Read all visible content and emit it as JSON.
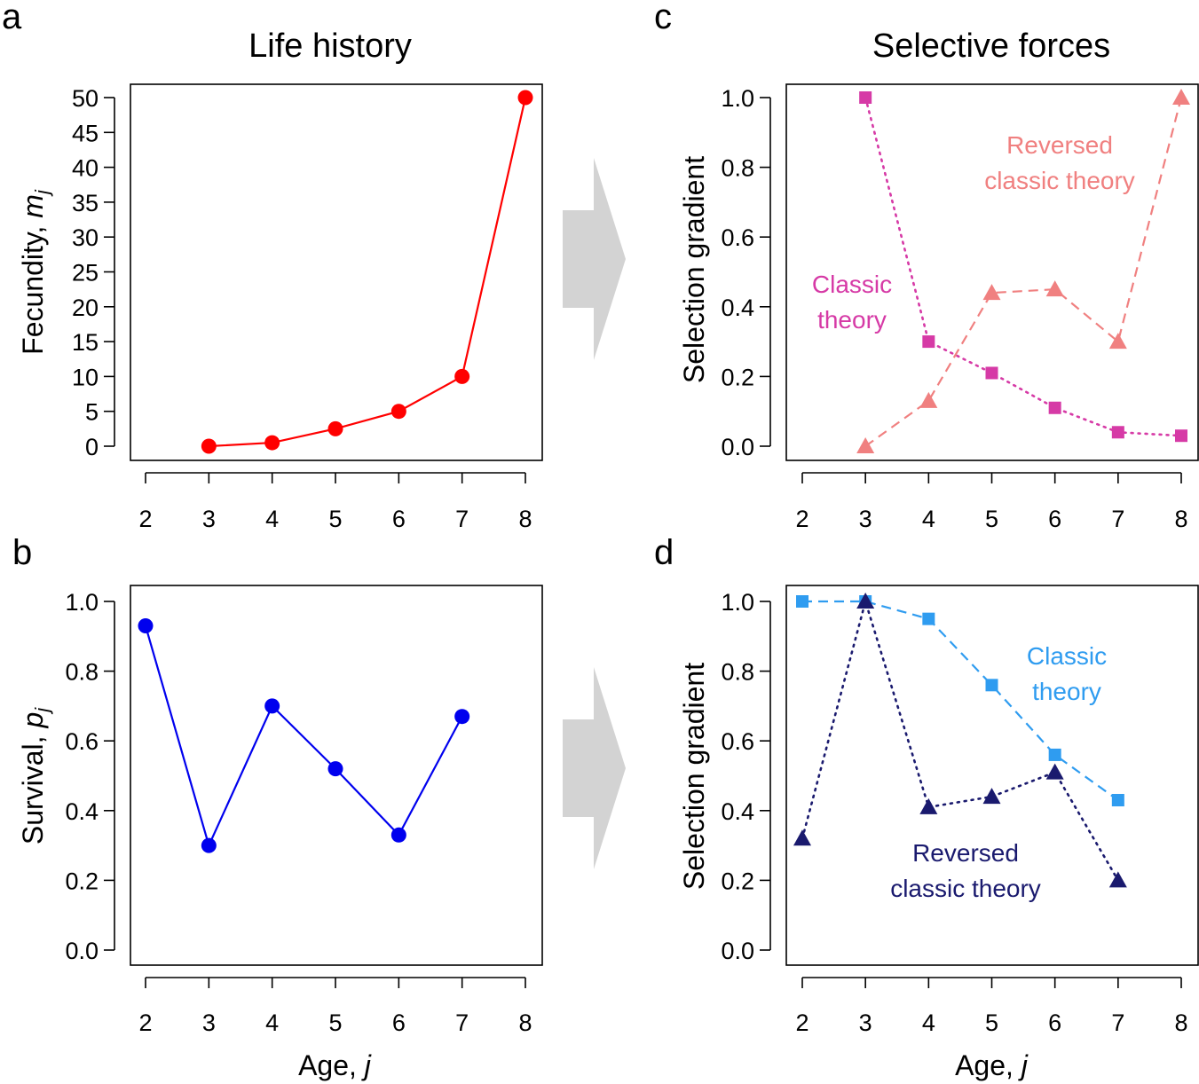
{
  "figure": {
    "col_titles": {
      "left": "Life history",
      "right": "Selective forces"
    },
    "panel_letters": {
      "a": "a",
      "b": "b",
      "c": "c",
      "d": "d"
    },
    "arrow_color": "#d3d3d3",
    "colors": {
      "fecundity": "#ff0000",
      "survival": "#0000ee",
      "c_classic": "#d63aa6",
      "c_reversed": "#f08080",
      "d_classic": "#2f9cf0",
      "d_reversed": "#1a1a6e"
    }
  },
  "chart_data": [
    {
      "panel": "a",
      "type": "line",
      "x": [
        3,
        4,
        5,
        6,
        7,
        8
      ],
      "series": [
        {
          "values": [
            0,
            0.5,
            2.5,
            5,
            10,
            50
          ],
          "color": "#ff0000",
          "marker": "circle",
          "line": "solid"
        }
      ],
      "xlabel": "",
      "ylabel": "Fecundity, ",
      "ylabel_sym": "m",
      "ylabel_sub": "j",
      "xlim": [
        2,
        8
      ],
      "ylim": [
        0,
        50
      ],
      "xticks": [
        2,
        3,
        4,
        5,
        6,
        7,
        8
      ],
      "yticks": [
        0,
        5,
        10,
        15,
        20,
        25,
        30,
        35,
        40,
        45,
        50
      ],
      "ytick_labels": [
        "0",
        "5",
        "10",
        "15",
        "20",
        "25",
        "30",
        "35",
        "40",
        "45",
        "50"
      ],
      "grid": false
    },
    {
      "panel": "b",
      "type": "line",
      "x": [
        2,
        3,
        4,
        5,
        6,
        7
      ],
      "series": [
        {
          "values": [
            0.93,
            0.3,
            0.7,
            0.52,
            0.33,
            0.67
          ],
          "color": "#0000ee",
          "marker": "circle",
          "line": "solid"
        }
      ],
      "xlabel": "Age, ",
      "xlabel_sym": "j",
      "ylabel": "Survival, ",
      "ylabel_sym": "p",
      "ylabel_sub": "j",
      "xlim": [
        2,
        8
      ],
      "ylim": [
        0,
        1
      ],
      "xticks": [
        2,
        3,
        4,
        5,
        6,
        7,
        8
      ],
      "yticks": [
        0,
        0.2,
        0.4,
        0.6,
        0.8,
        1.0
      ],
      "ytick_labels": [
        "0.0",
        "0.2",
        "0.4",
        "0.6",
        "0.8",
        "1.0"
      ],
      "grid": false
    },
    {
      "panel": "c",
      "type": "line",
      "x": [
        3,
        4,
        5,
        6,
        7,
        8
      ],
      "series": [
        {
          "name": "Classic theory",
          "values": [
            1.0,
            0.3,
            0.21,
            0.11,
            0.04,
            0.03
          ],
          "color": "#d63aa6",
          "marker": "square",
          "line": "dotted"
        },
        {
          "name": "Reversed classic theory",
          "values": [
            0.0,
            0.13,
            0.44,
            0.45,
            0.3,
            1.0
          ],
          "color": "#f08080",
          "marker": "triangle",
          "line": "dashed"
        }
      ],
      "annotations": [
        {
          "lines": [
            "Reversed",
            "classic theory"
          ],
          "color": "#f08080"
        },
        {
          "lines": [
            "Classic",
            "theory"
          ],
          "color": "#d63aa6"
        }
      ],
      "xlabel": "",
      "ylabel": "Selection gradient",
      "xlim": [
        2,
        8
      ],
      "ylim": [
        0,
        1
      ],
      "xticks": [
        2,
        3,
        4,
        5,
        6,
        7,
        8
      ],
      "yticks": [
        0,
        0.2,
        0.4,
        0.6,
        0.8,
        1.0
      ],
      "ytick_labels": [
        "0.0",
        "0.2",
        "0.4",
        "0.6",
        "0.8",
        "1.0"
      ],
      "grid": false
    },
    {
      "panel": "d",
      "type": "line",
      "x": [
        2,
        3,
        4,
        5,
        6,
        7
      ],
      "series": [
        {
          "name": "Classic theory",
          "values": [
            1.0,
            1.0,
            0.95,
            0.76,
            0.56,
            0.43
          ],
          "color": "#2f9cf0",
          "marker": "square",
          "line": "dashed"
        },
        {
          "name": "Reversed classic theory",
          "values": [
            0.32,
            1.0,
            0.41,
            0.44,
            0.51,
            0.2
          ],
          "color": "#1a1a6e",
          "marker": "triangle",
          "line": "dotted"
        }
      ],
      "annotations": [
        {
          "lines": [
            "Classic",
            "theory"
          ],
          "color": "#2f9cf0"
        },
        {
          "lines": [
            "Reversed",
            "classic theory"
          ],
          "color": "#1a1a6e"
        }
      ],
      "xlabel": "Age, ",
      "xlabel_sym": "j",
      "ylabel": "Selection gradient",
      "xlim": [
        2,
        8
      ],
      "ylim": [
        0,
        1
      ],
      "xticks": [
        2,
        3,
        4,
        5,
        6,
        7,
        8
      ],
      "yticks": [
        0,
        0.2,
        0.4,
        0.6,
        0.8,
        1.0
      ],
      "ytick_labels": [
        "0.0",
        "0.2",
        "0.4",
        "0.6",
        "0.8",
        "1.0"
      ],
      "grid": false
    }
  ]
}
